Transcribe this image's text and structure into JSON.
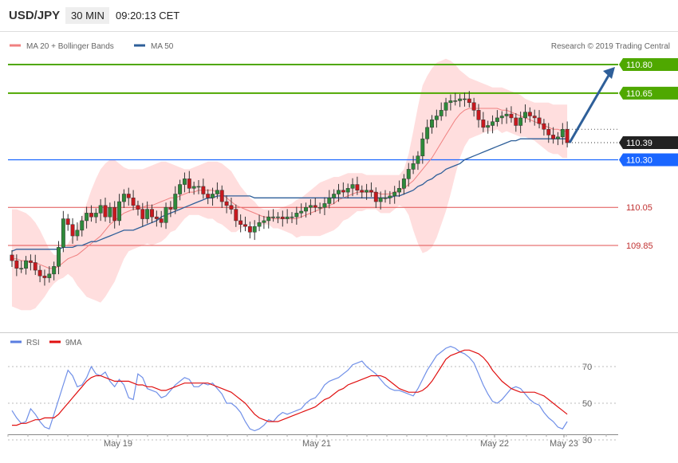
{
  "header": {
    "symbol": "USD/JPY",
    "timeframe": "30 MIN",
    "time": "09:20:13 CET",
    "credit": "Research © 2019 Trading Central"
  },
  "legend_top": [
    {
      "label": "MA 20 + Bollinger Bands",
      "color": "#f08080"
    },
    {
      "label": "MA 50",
      "color": "#2e5f99"
    }
  ],
  "legend_bottom": [
    {
      "label": "RSI",
      "color": "#5a7de0"
    },
    {
      "label": "9MA",
      "color": "#e01010"
    }
  ],
  "levels": [
    {
      "value": 110.8,
      "label": "110.80",
      "color": "#4fa800"
    },
    {
      "value": 110.65,
      "label": "110.65",
      "color": "#4fa800"
    },
    {
      "value": 110.39,
      "label": "110.39",
      "color": "#222222"
    },
    {
      "value": 110.3,
      "label": "110.30",
      "color": "#1a66ff"
    },
    {
      "value": 110.05,
      "label": "110.05",
      "color": "#e05050"
    },
    {
      "value": 109.85,
      "label": "109.85",
      "color": "#e05050"
    }
  ],
  "chart_data": [
    {
      "type": "candlestick",
      "title": "USD/JPY 30 MIN",
      "ylim": [
        109.7,
        110.9
      ],
      "x_ticks": [
        "May 19",
        "May 21",
        "May 22",
        "May 23"
      ],
      "candles_close": [
        109.77,
        109.73,
        109.73,
        109.77,
        109.76,
        109.72,
        109.69,
        109.68,
        109.7,
        109.74,
        109.84,
        109.99,
        109.96,
        109.9,
        109.93,
        109.98,
        110.02,
        110.0,
        110.02,
        110.06,
        110.0,
        110.05,
        109.98,
        110.08,
        110.12,
        110.1,
        110.06,
        110.04,
        109.99,
        110.04,
        110.0,
        109.99,
        109.97,
        110.05,
        110.04,
        110.12,
        110.17,
        110.2,
        110.15,
        110.16,
        110.16,
        110.12,
        110.1,
        110.12,
        110.14,
        110.08,
        110.06,
        110.04,
        109.98,
        109.96,
        109.95,
        109.92,
        109.95,
        109.97,
        109.98,
        110.0,
        110.0,
        110.0,
        109.99,
        110.0,
        110.0,
        110.02,
        110.03,
        110.05,
        110.06,
        110.05,
        110.05,
        110.07,
        110.1,
        110.12,
        110.14,
        110.13,
        110.15,
        110.17,
        110.14,
        110.13,
        110.14,
        110.13,
        110.08,
        110.1,
        110.1,
        110.11,
        110.13,
        110.15,
        110.2,
        110.25,
        110.28,
        110.32,
        110.41,
        110.47,
        110.51,
        110.53,
        110.56,
        110.6,
        110.61,
        110.61,
        110.62,
        110.62,
        110.6,
        110.56,
        110.51,
        110.47,
        110.48,
        110.5,
        110.52,
        110.53,
        110.54,
        110.52,
        110.48,
        110.52,
        110.55,
        110.53,
        110.52,
        110.49,
        110.46,
        110.43,
        110.41,
        110.42,
        110.46,
        110.39
      ],
      "candles_open": [
        109.8,
        109.77,
        109.73,
        109.73,
        109.77,
        109.76,
        109.72,
        109.69,
        109.68,
        109.7,
        109.74,
        109.84,
        109.99,
        109.96,
        109.9,
        109.93,
        109.98,
        110.02,
        110.0,
        110.02,
        110.06,
        110.0,
        110.05,
        109.98,
        110.08,
        110.12,
        110.1,
        110.06,
        110.04,
        109.99,
        110.04,
        110.0,
        109.99,
        109.97,
        110.05,
        110.04,
        110.12,
        110.17,
        110.2,
        110.15,
        110.16,
        110.16,
        110.12,
        110.1,
        110.12,
        110.14,
        110.08,
        110.06,
        110.04,
        109.98,
        109.96,
        109.95,
        109.92,
        109.95,
        109.97,
        109.98,
        110.0,
        110.0,
        110.0,
        109.99,
        110.0,
        110.0,
        110.02,
        110.03,
        110.05,
        110.06,
        110.05,
        110.05,
        110.07,
        110.1,
        110.12,
        110.14,
        110.13,
        110.15,
        110.17,
        110.14,
        110.13,
        110.14,
        110.13,
        110.08,
        110.1,
        110.1,
        110.11,
        110.13,
        110.15,
        110.2,
        110.25,
        110.28,
        110.32,
        110.41,
        110.47,
        110.51,
        110.53,
        110.56,
        110.6,
        110.61,
        110.61,
        110.62,
        110.62,
        110.6,
        110.56,
        110.51,
        110.47,
        110.48,
        110.5,
        110.52,
        110.53,
        110.54,
        110.52,
        110.48,
        110.52,
        110.55,
        110.53,
        110.52,
        110.49,
        110.46,
        110.43,
        110.41,
        110.42,
        110.46
      ],
      "ma50": [
        109.82,
        109.83,
        109.83,
        109.83,
        109.83,
        109.83,
        109.83,
        109.83,
        109.83,
        109.83,
        109.83,
        109.84,
        109.84,
        109.84,
        109.85,
        109.85,
        109.86,
        109.87,
        109.87,
        109.88,
        109.89,
        109.9,
        109.91,
        109.92,
        109.93,
        109.93,
        109.93,
        109.94,
        109.95,
        109.96,
        109.97,
        109.98,
        110.0,
        110.01,
        110.02,
        110.03,
        110.04,
        110.05,
        110.06,
        110.07,
        110.08,
        110.09,
        110.1,
        110.1,
        110.11,
        110.11,
        110.11,
        110.11,
        110.11,
        110.11,
        110.11,
        110.11,
        110.1,
        110.1,
        110.1,
        110.1,
        110.1,
        110.1,
        110.1,
        110.1,
        110.1,
        110.1,
        110.1,
        110.1,
        110.1,
        110.1,
        110.1,
        110.1,
        110.1,
        110.1,
        110.1,
        110.1,
        110.1,
        110.1,
        110.1,
        110.1,
        110.1,
        110.1,
        110.1,
        110.1,
        110.1,
        110.1,
        110.11,
        110.11,
        110.12,
        110.13,
        110.14,
        110.16,
        110.17,
        110.19,
        110.2,
        110.22,
        110.23,
        110.25,
        110.26,
        110.27,
        110.28,
        110.3,
        110.31,
        110.32,
        110.33,
        110.34,
        110.35,
        110.36,
        110.37,
        110.38,
        110.39,
        110.4,
        110.4,
        110.41,
        110.41,
        110.41,
        110.41,
        110.41,
        110.41,
        110.41,
        110.41,
        110.41,
        110.41,
        110.41
      ],
      "bollinger_mid": [
        109.78,
        109.78,
        109.77,
        109.77,
        109.76,
        109.76,
        109.75,
        109.74,
        109.73,
        109.73,
        109.74,
        109.76,
        109.78,
        109.79,
        109.8,
        109.82,
        109.84,
        109.86,
        109.88,
        109.9,
        109.93,
        109.96,
        109.98,
        110.0,
        110.02,
        110.03,
        110.04,
        110.04,
        110.05,
        110.06,
        110.06,
        110.07,
        110.08,
        110.09,
        110.1,
        110.1,
        110.11,
        110.12,
        110.13,
        110.13,
        110.14,
        110.14,
        110.14,
        110.14,
        110.13,
        110.12,
        110.1,
        110.08,
        110.06,
        110.05,
        110.04,
        110.03,
        110.02,
        110.01,
        110.0,
        110.0,
        109.99,
        109.99,
        109.99,
        109.99,
        109.99,
        109.99,
        110.0,
        110.01,
        110.02,
        110.03,
        110.04,
        110.05,
        110.06,
        110.07,
        110.09,
        110.1,
        110.11,
        110.12,
        110.13,
        110.13,
        110.13,
        110.13,
        110.13,
        110.12,
        110.12,
        110.12,
        110.13,
        110.14,
        110.15,
        110.17,
        110.19,
        110.22,
        110.25,
        110.28,
        110.31,
        110.35,
        110.39,
        110.43,
        110.47,
        110.51,
        110.54,
        110.56,
        110.57,
        110.57,
        110.57,
        110.57,
        110.57,
        110.57,
        110.57,
        110.56,
        110.56,
        110.55,
        110.54,
        110.53,
        110.52,
        110.51,
        110.5,
        110.49,
        110.48,
        110.47,
        110.46,
        110.46,
        110.45,
        110.45
      ],
      "bollinger_upper": [
        110.04,
        110.04,
        110.03,
        110.02,
        110.0,
        109.97,
        109.93,
        109.88,
        109.83,
        109.8,
        109.8,
        109.82,
        109.86,
        109.9,
        109.95,
        110.0,
        110.07,
        110.14,
        110.2,
        110.25,
        110.28,
        110.3,
        110.3,
        110.28,
        110.26,
        110.25,
        110.25,
        110.25,
        110.25,
        110.26,
        110.27,
        110.28,
        110.29,
        110.29,
        110.28,
        110.27,
        110.26,
        110.25,
        110.25,
        110.26,
        110.27,
        110.28,
        110.29,
        110.29,
        110.29,
        110.28,
        110.26,
        110.24,
        110.2,
        110.16,
        110.13,
        110.1,
        110.08,
        110.05,
        110.04,
        110.04,
        110.04,
        110.04,
        110.05,
        110.06,
        110.07,
        110.09,
        110.1,
        110.12,
        110.14,
        110.16,
        110.18,
        110.19,
        110.2,
        110.21,
        110.21,
        110.22,
        110.23,
        110.23,
        110.23,
        110.23,
        110.22,
        110.22,
        110.22,
        110.22,
        110.22,
        110.22,
        110.22,
        110.22,
        110.25,
        110.33,
        110.45,
        110.58,
        110.69,
        110.74,
        110.78,
        110.81,
        110.82,
        110.83,
        110.82,
        110.8,
        110.77,
        110.75,
        110.73,
        110.72,
        110.71,
        110.7,
        110.69,
        110.68,
        110.68,
        110.68,
        110.67,
        110.66,
        110.65,
        110.64,
        110.62,
        110.61,
        110.6,
        110.6,
        110.6,
        110.6,
        110.59,
        110.59,
        110.59,
        110.59
      ],
      "bollinger_lower": [
        109.53,
        109.52,
        109.51,
        109.51,
        109.51,
        109.52,
        109.55,
        109.58,
        109.62,
        109.65,
        109.67,
        109.68,
        109.7,
        109.68,
        109.64,
        109.61,
        109.58,
        109.57,
        109.56,
        109.55,
        109.58,
        109.62,
        109.66,
        109.72,
        109.78,
        109.82,
        109.83,
        109.84,
        109.85,
        109.86,
        109.85,
        109.86,
        109.87,
        109.89,
        109.92,
        109.93,
        109.96,
        109.99,
        110.01,
        110.01,
        110.01,
        110.0,
        109.99,
        109.99,
        109.97,
        109.96,
        109.94,
        109.92,
        109.92,
        109.94,
        109.95,
        109.96,
        109.96,
        109.96,
        109.96,
        109.96,
        109.94,
        109.94,
        109.93,
        109.92,
        109.91,
        109.89,
        109.9,
        109.9,
        109.9,
        109.9,
        109.9,
        109.91,
        109.92,
        109.93,
        109.95,
        109.98,
        109.99,
        110.01,
        110.03,
        110.03,
        110.04,
        110.04,
        110.04,
        110.02,
        110.02,
        110.02,
        110.04,
        110.06,
        110.05,
        110.01,
        109.93,
        109.86,
        109.81,
        109.82,
        109.84,
        109.89,
        109.96,
        110.03,
        110.12,
        110.22,
        110.31,
        110.37,
        110.41,
        110.42,
        110.43,
        110.44,
        110.45,
        110.45,
        110.46,
        110.44,
        110.45,
        110.44,
        110.43,
        110.42,
        110.42,
        110.41,
        110.4,
        110.38,
        110.36,
        110.34,
        110.33,
        110.33,
        110.31,
        110.31
      ],
      "projection": {
        "from": 110.39,
        "to": 110.8
      }
    },
    {
      "type": "line",
      "ylabel": "RSI",
      "ylim": [
        20,
        90
      ],
      "y_ticks": [
        30,
        50,
        70
      ],
      "series": [
        {
          "name": "RSI",
          "color": "#5a7de0",
          "values": [
            46,
            42,
            39,
            40,
            47,
            44,
            40,
            37,
            36,
            44,
            52,
            60,
            68,
            65,
            59,
            60,
            64,
            70,
            66,
            65,
            67,
            62,
            59,
            63,
            60,
            53,
            52,
            66,
            64,
            58,
            57,
            56,
            53,
            54,
            57,
            60,
            62,
            64,
            63,
            59,
            59,
            61,
            60,
            61,
            58,
            55,
            50,
            50,
            48,
            45,
            40,
            36,
            35,
            36,
            38,
            41,
            40,
            43,
            45,
            44,
            45,
            46,
            47,
            50,
            52,
            53,
            56,
            60,
            62,
            63,
            64,
            66,
            68,
            71,
            72,
            73,
            70,
            68,
            66,
            63,
            60,
            58,
            57,
            57,
            56,
            55,
            54,
            58,
            63,
            68,
            72,
            76,
            78,
            80,
            81,
            80,
            78,
            77,
            75,
            72,
            66,
            60,
            55,
            51,
            50,
            52,
            55,
            58,
            59,
            58,
            55,
            52,
            50,
            49,
            45,
            42,
            40,
            37,
            36,
            40
          ]
        },
        {
          "name": "9MA",
          "color": "#e01010",
          "values": [
            38,
            38,
            39,
            39,
            40,
            41,
            41,
            42,
            42,
            42,
            44,
            47,
            50,
            53,
            56,
            59,
            62,
            64,
            65,
            65,
            64,
            63,
            62,
            62,
            62,
            62,
            61,
            60,
            60,
            59,
            59,
            58,
            57,
            57,
            58,
            59,
            60,
            61,
            61,
            61,
            61,
            61,
            61,
            60,
            59,
            58,
            57,
            56,
            54,
            52,
            50,
            47,
            44,
            42,
            41,
            40,
            40,
            40,
            41,
            42,
            43,
            44,
            45,
            46,
            47,
            48,
            50,
            52,
            53,
            55,
            57,
            58,
            60,
            61,
            62,
            63,
            64,
            65,
            65,
            65,
            64,
            62,
            60,
            58,
            57,
            56,
            56,
            56,
            57,
            59,
            62,
            66,
            70,
            74,
            76,
            77,
            78,
            79,
            79,
            78,
            77,
            75,
            72,
            68,
            65,
            62,
            60,
            58,
            57,
            56,
            56,
            56,
            56,
            55,
            54,
            52,
            50,
            48,
            46,
            44
          ]
        }
      ]
    }
  ]
}
